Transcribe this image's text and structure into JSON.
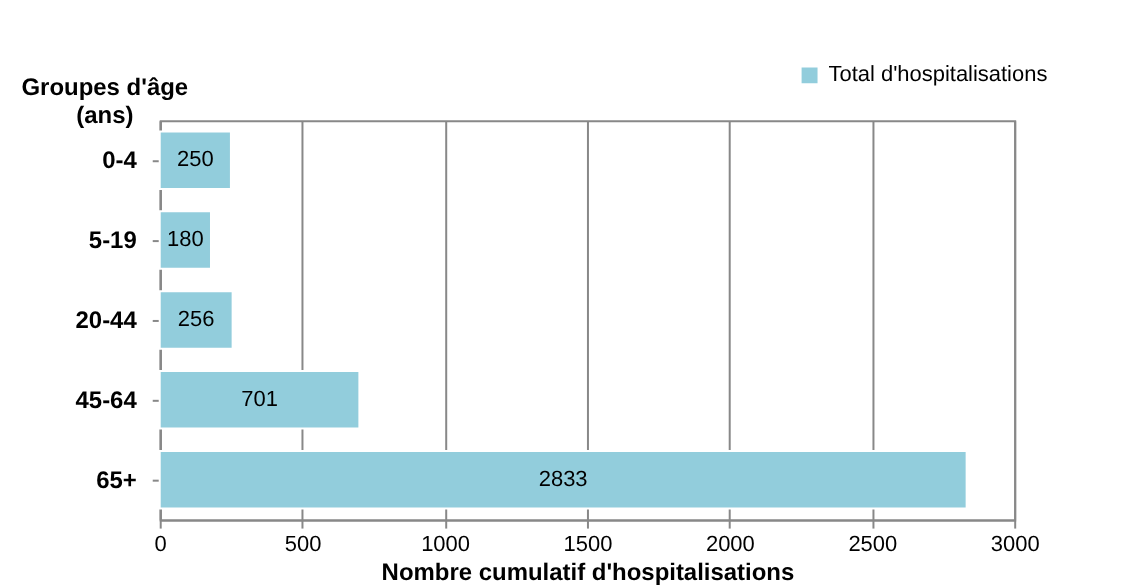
{
  "chart_data": {
    "type": "bar",
    "orientation": "horizontal",
    "categories": [
      "0-4",
      "5-19",
      "20-44",
      "45-64",
      "65+"
    ],
    "series": [
      {
        "name": "Total d'hospitalisations",
        "color": "#92cddc",
        "values": [
          250,
          180,
          256,
          701,
          2833
        ]
      }
    ],
    "xlabel": "Nombre cumulatif d'hospitalisations",
    "ylabel": "Groupes d'âge (ans)",
    "xlim": [
      0,
      3000
    ],
    "xticks": [
      0,
      500,
      1000,
      1500,
      2000,
      2500,
      3000
    ],
    "grid": "x",
    "legend": "top right",
    "data_labels": true
  }
}
